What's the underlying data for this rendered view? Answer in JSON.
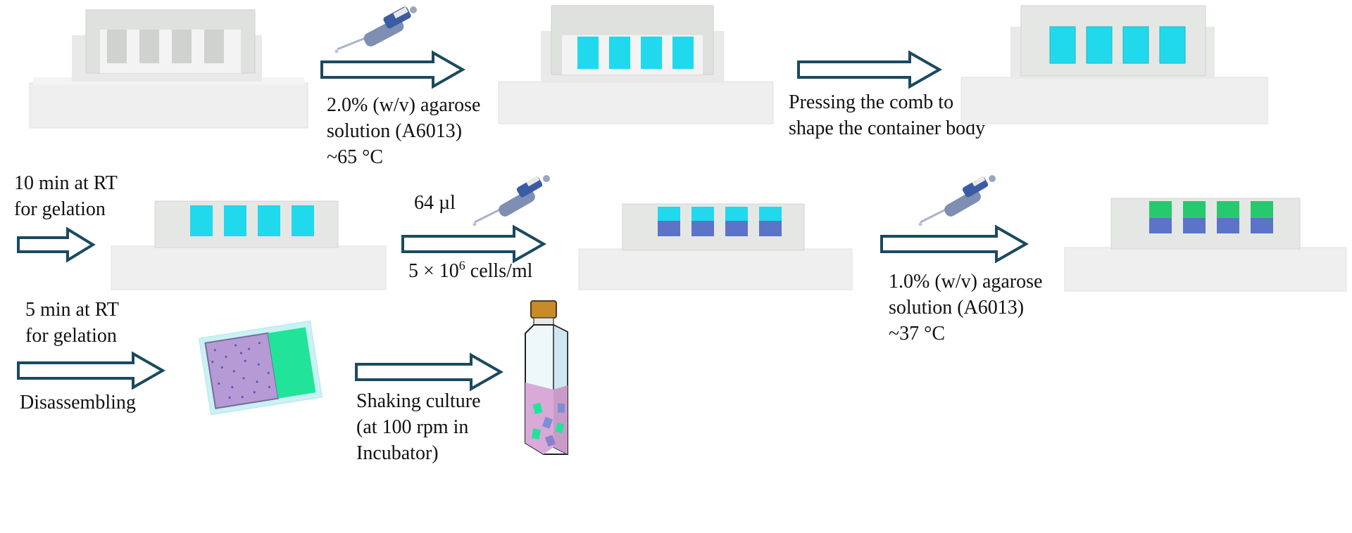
{
  "steps": {
    "step1": {
      "lines": [
        "2.0% (w/v) agarose",
        "solution (A6013)",
        "~65 °C"
      ]
    },
    "step2": {
      "lines": [
        "Pressing the comb to",
        "shape the container body"
      ]
    },
    "step3": {
      "lines": [
        "10 min at RT",
        "for gelation"
      ]
    },
    "step4": {
      "volume": "64 µl",
      "conc_prefix": "5 × 10",
      "conc_exp": "6",
      "conc_suffix": " cells/ml"
    },
    "step5": {
      "lines": [
        "1.0% (w/v) agarose",
        "solution (A6013)",
        "~37 °C"
      ]
    },
    "step6": {
      "lines": [
        "5 min at RT",
        "for gelation"
      ],
      "after": "Disassembling"
    },
    "step7": {
      "lines": [
        "Shaking culture",
        "(at 100 rpm in",
        "Incubator)"
      ]
    }
  },
  "colors": {
    "arrow": "#1b4a5e",
    "agarose": "#21d9ec",
    "cells": "#5b74c8",
    "top_gel": "#27c96e",
    "gel_purple": "#b59ad6",
    "gel_green": "#22e39a",
    "bottle_cap": "#c98a2a",
    "medium": "#d9a9d8"
  },
  "icons": [
    "pipette-icon",
    "culture-flask-icon",
    "gel-slab-icon"
  ]
}
